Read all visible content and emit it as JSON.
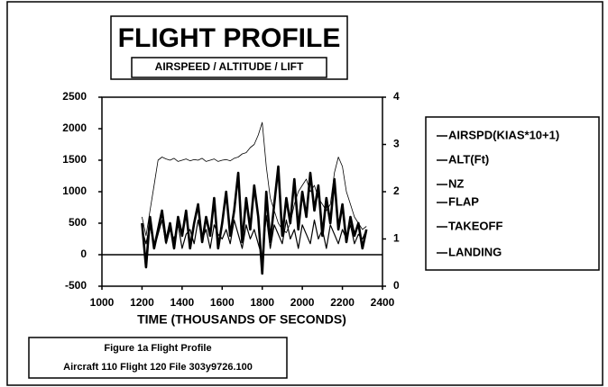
{
  "chart_data": {
    "type": "line",
    "title": "FLIGHT PROFILE",
    "subtitle": "AIRSPEED / ALTITUDE / LIFT",
    "x_label": "TIME (THOUSANDS OF SECONDS)",
    "caption": [
      "Figure 1a Flight Profile",
      "Aircraft 110 Flight 120 File 303y9726.100"
    ],
    "xlim": [
      1000,
      2400
    ],
    "xticks": [
      1000,
      1200,
      1400,
      1600,
      1800,
      2000,
      2200,
      2400
    ],
    "ylim": [
      -500,
      2500
    ],
    "yticks": [
      -500,
      0,
      500,
      1000,
      1500,
      2000,
      2500
    ],
    "y2lim": [
      0,
      4
    ],
    "y2ticks": [
      0,
      1,
      2,
      3,
      4
    ],
    "x": [
      1200,
      1220,
      1240,
      1260,
      1280,
      1300,
      1320,
      1340,
      1360,
      1380,
      1400,
      1420,
      1440,
      1460,
      1480,
      1500,
      1520,
      1540,
      1560,
      1580,
      1600,
      1620,
      1640,
      1660,
      1680,
      1700,
      1720,
      1740,
      1760,
      1780,
      1800,
      1820,
      1840,
      1860,
      1880,
      1900,
      1920,
      1940,
      1960,
      1980,
      2000,
      2020,
      2040,
      2060,
      2080,
      2100,
      2120,
      2140,
      2160,
      2180,
      2200,
      2220,
      2240,
      2260,
      2280,
      2300,
      2320
    ],
    "series": [
      {
        "name": "AIRSPD(KIAS*10+1)",
        "color": "#000000",
        "values": [
          500,
          -200,
          600,
          100,
          400,
          700,
          200,
          500,
          100,
          600,
          300,
          700,
          100,
          500,
          800,
          200,
          600,
          300,
          900,
          100,
          500,
          1000,
          300,
          700,
          1300,
          200,
          900,
          400,
          1100,
          600,
          -300,
          1000,
          200,
          800,
          1400,
          300,
          900,
          500,
          1200,
          400,
          1000,
          600,
          1300,
          700,
          1100,
          300,
          900,
          500,
          1200,
          400,
          800,
          200,
          600,
          300,
          500,
          100,
          400
        ]
      },
      {
        "name": "ALT(Ft)",
        "color": "#000000",
        "values": [
          600,
          300,
          700,
          1100,
          1500,
          1550,
          1520,
          1500,
          1530,
          1480,
          1500,
          1520,
          1490,
          1510,
          1500,
          1530,
          1480,
          1500,
          1520,
          1480,
          1500,
          1510,
          1490,
          1530,
          1550,
          1600,
          1620,
          1700,
          1750,
          1900,
          2100,
          1400,
          900,
          700,
          500,
          400,
          350,
          500,
          800,
          1000,
          1100,
          1200,
          1000,
          1100,
          900,
          800,
          700,
          800,
          1300,
          1550,
          1400,
          1000,
          800,
          600,
          500,
          400,
          450
        ]
      },
      {
        "name": "NZ",
        "color": "#000000",
        "axis": "y2",
        "values": [
          1.2,
          0.9,
          1.3,
          0.8,
          1.1,
          1.4,
          0.9,
          1.2,
          1,
          1.3,
          0.8,
          1.1,
          1.2,
          0.9,
          1.4,
          1,
          1.2,
          0.8,
          1.3,
          1.1,
          1,
          1.2,
          0.9,
          1.4,
          1.1,
          0.8,
          1.3,
          1,
          1.2,
          0.9,
          0.6,
          1.5,
          0.8,
          1.3,
          1.1,
          0.9,
          1.4,
          1,
          1.2,
          0.8,
          1.3,
          1.1,
          0.9,
          1.4,
          1,
          1.2,
          0.8,
          1.3,
          1.1,
          0.9,
          1.2,
          1,
          1.3,
          0.9,
          1.1,
          1,
          1.2
        ]
      },
      {
        "name": "FLAP",
        "color": "#000000",
        "values": [
          null,
          null,
          null,
          null,
          null,
          null,
          null,
          null,
          null,
          null,
          null,
          null,
          null,
          null,
          null,
          null,
          null,
          null,
          null,
          null,
          null,
          null,
          null,
          null,
          null,
          null,
          null,
          null,
          null,
          null,
          null,
          null,
          null,
          null,
          null,
          null,
          null,
          null,
          null,
          null,
          null,
          null,
          null,
          null,
          null,
          null,
          null,
          null,
          null,
          null,
          null,
          null,
          null,
          null,
          null,
          null,
          null
        ]
      },
      {
        "name": "TAKEOFF",
        "color": "#000000",
        "values": [
          null,
          null,
          null,
          null,
          null,
          null,
          null,
          null,
          null,
          null,
          null,
          null,
          null,
          null,
          null,
          null,
          null,
          null,
          null,
          null,
          null,
          null,
          null,
          null,
          null,
          null,
          null,
          null,
          null,
          null,
          null,
          null,
          null,
          null,
          null,
          null,
          null,
          null,
          null,
          null,
          null,
          null,
          null,
          null,
          null,
          null,
          null,
          null,
          null,
          null,
          null,
          null,
          null,
          null,
          null,
          null,
          null
        ]
      },
      {
        "name": "LANDING",
        "color": "#000000",
        "values": [
          null,
          null,
          null,
          null,
          null,
          null,
          null,
          null,
          null,
          null,
          null,
          null,
          null,
          null,
          null,
          null,
          null,
          null,
          null,
          null,
          null,
          null,
          null,
          null,
          null,
          null,
          null,
          null,
          null,
          null,
          null,
          null,
          null,
          null,
          null,
          null,
          null,
          null,
          null,
          null,
          null,
          null,
          null,
          null,
          null,
          null,
          null,
          null,
          null,
          null,
          null,
          null,
          null,
          null,
          null,
          null,
          null
        ]
      }
    ]
  }
}
